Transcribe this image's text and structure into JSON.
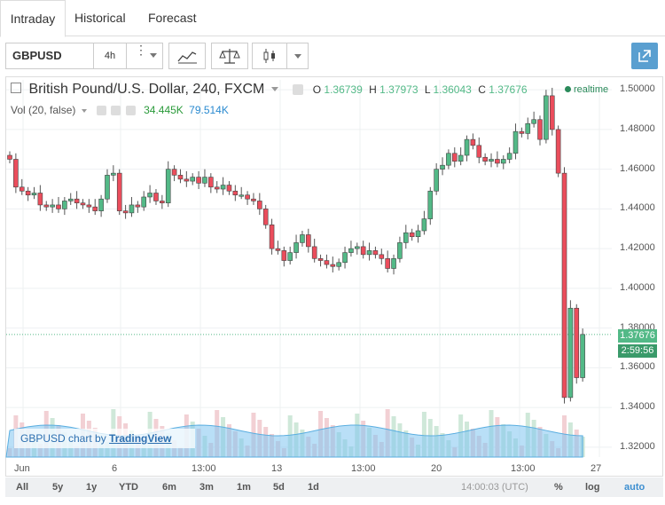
{
  "tabs": [
    {
      "label": "Intraday"
    },
    {
      "label": "Historical"
    },
    {
      "label": "Forecast"
    }
  ],
  "toolbar": {
    "symbol": "GBPUSD",
    "interval": "4h"
  },
  "legend": {
    "title": "British Pound/U.S. Dollar, 240, FXCM",
    "o_label": "O",
    "o": "1.36739",
    "h_label": "H",
    "h": "1.37973",
    "l_label": "L",
    "l": "1.36043",
    "c_label": "C",
    "c": "1.37676",
    "realtime": "realtime",
    "vol_label": "Vol (20, false)",
    "vol1": "34.445K",
    "vol2": "79.514K"
  },
  "price_label": "1.37676",
  "countdown": "2:59:56",
  "badge": {
    "text": "GBPUSD chart by",
    "link": "TradingView"
  },
  "footer": {
    "ranges": [
      "All",
      "5y",
      "1y",
      "YTD",
      "6m",
      "3m",
      "1m",
      "5d",
      "1d"
    ],
    "time": "14:00:03 (UTC)",
    "pct": "%",
    "log": "log",
    "auto": "auto"
  },
  "colors": {
    "up": "#53b987",
    "down": "#eb4d5c",
    "accent": "#5a9fd0",
    "volume": "#7fc4f0"
  },
  "chart_data": {
    "type": "candlestick",
    "y_ticks": [
      "1.50000",
      "1.48000",
      "1.46000",
      "1.44000",
      "1.42000",
      "1.40000",
      "1.38000",
      "1.36000",
      "1.34000",
      "1.32000"
    ],
    "x_ticks": [
      "Jun",
      "6",
      "13:00",
      "13",
      "13:00",
      "20",
      "13:00",
      "27"
    ],
    "ylim": [
      1.315,
      1.505
    ],
    "closes": [
      1.465,
      1.451,
      1.449,
      1.447,
      1.448,
      1.442,
      1.441,
      1.442,
      1.44,
      1.444,
      1.445,
      1.443,
      1.442,
      1.441,
      1.439,
      1.445,
      1.457,
      1.458,
      1.439,
      1.438,
      1.442,
      1.441,
      1.446,
      1.448,
      1.444,
      1.443,
      1.46,
      1.457,
      1.455,
      1.454,
      1.456,
      1.453,
      1.456,
      1.451,
      1.45,
      1.452,
      1.449,
      1.447,
      1.447,
      1.445,
      1.444,
      1.44,
      1.432,
      1.42,
      1.419,
      1.414,
      1.418,
      1.423,
      1.427,
      1.421,
      1.415,
      1.414,
      1.412,
      1.411,
      1.413,
      1.418,
      1.42,
      1.421,
      1.417,
      1.419,
      1.417,
      1.415,
      1.41,
      1.415,
      1.423,
      1.428,
      1.426,
      1.429,
      1.435,
      1.449,
      1.46,
      1.462,
      1.468,
      1.464,
      1.467,
      1.475,
      1.472,
      1.466,
      1.464,
      1.465,
      1.463,
      1.465,
      1.468,
      1.479,
      1.478,
      1.483,
      1.485,
      1.475,
      1.497,
      1.48,
      1.458,
      1.345,
      1.39,
      1.355,
      1.37676
    ],
    "volume_min": 0,
    "volume_max": 80
  }
}
